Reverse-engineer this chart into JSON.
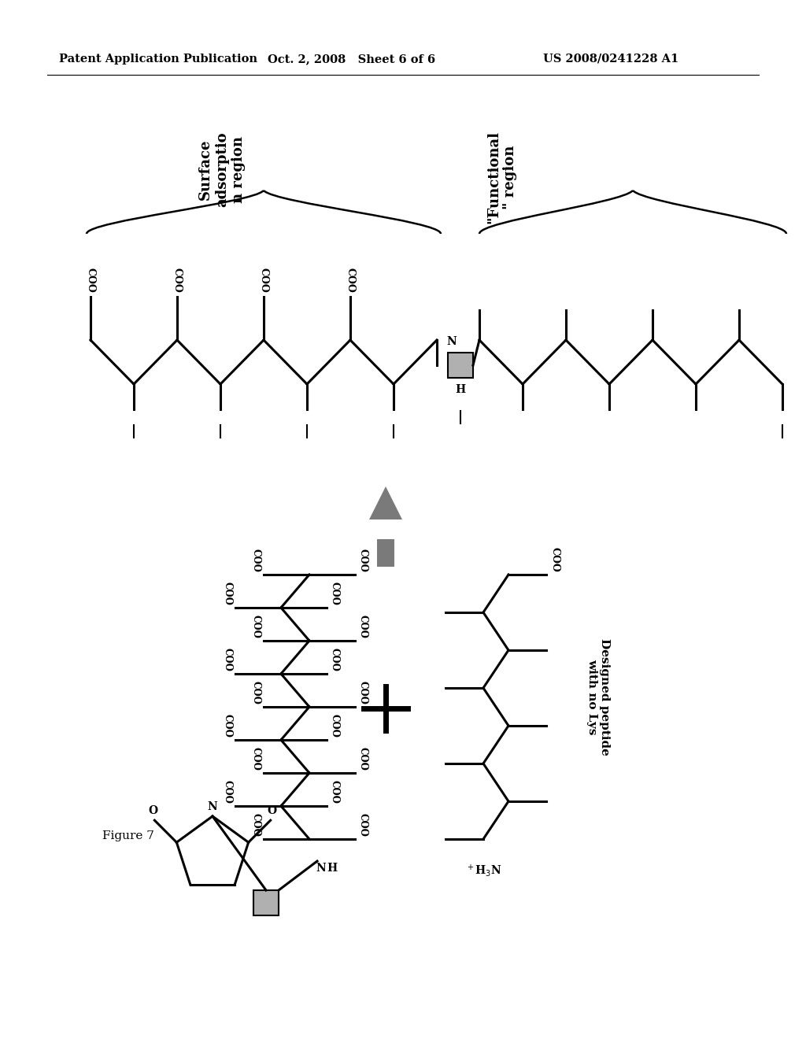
{
  "bg_color": "#ffffff",
  "header_left": "Patent Application Publication",
  "header_center": "Oct. 2, 2008   Sheet 6 of 6",
  "header_right": "US 2008/0241228 A1",
  "header_fontsize": 11,
  "figure_label": "Figure 7",
  "label1": "Surface\nadsorptio\nn region",
  "label2": "\"Functional\n\" region",
  "label3": "Designed peptide\nwith no Lys",
  "arrow_gray": "#7a7a7a",
  "box_gray": "#b0b0b0",
  "line_color": "#000000",
  "line_width": 2.2
}
